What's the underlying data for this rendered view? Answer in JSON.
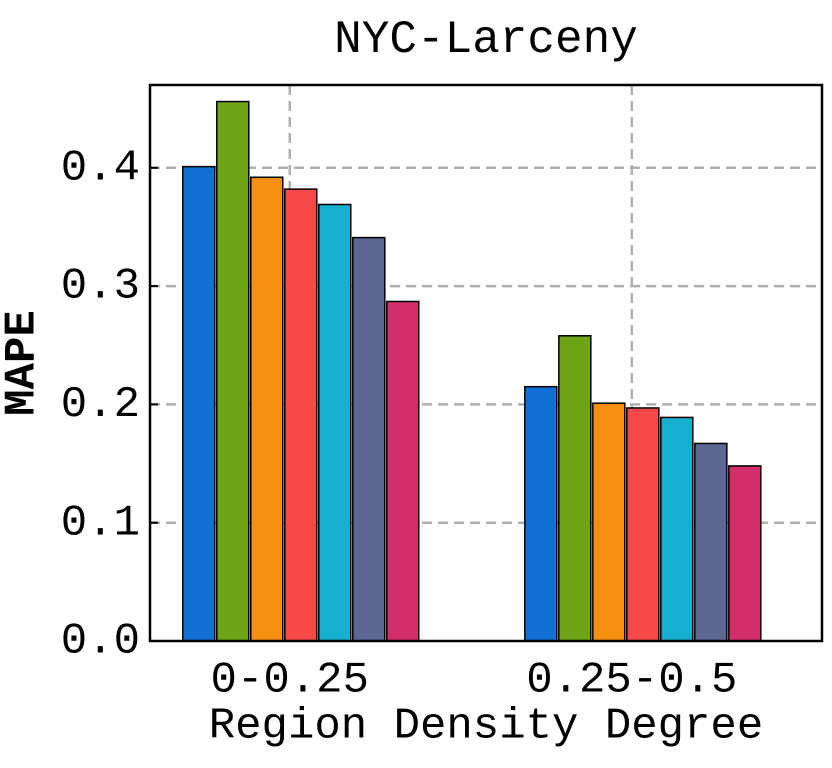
{
  "chart_data": {
    "type": "bar",
    "title": "NYC-Larceny",
    "xlabel": "Region Density Degree",
    "ylabel": "MAPE",
    "categories": [
      "0-0.25",
      "0.25-0.5"
    ],
    "series": [
      {
        "color": "#1170d2",
        "values": [
          0.401,
          0.215
        ]
      },
      {
        "color": "#6ea415",
        "values": [
          0.456,
          0.258
        ]
      },
      {
        "color": "#f68f10",
        "values": [
          0.392,
          0.201
        ]
      },
      {
        "color": "#f94848",
        "values": [
          0.382,
          0.197
        ]
      },
      {
        "color": "#17afd0",
        "values": [
          0.369,
          0.189
        ]
      },
      {
        "color": "#5e6694",
        "values": [
          0.341,
          0.167
        ]
      },
      {
        "color": "#d22e6b",
        "values": [
          0.287,
          0.148
        ]
      }
    ],
    "ylim": [
      0,
      0.47
    ],
    "yticks": [
      {
        "value": 0,
        "label": "0.0"
      },
      0.1,
      0.2,
      0.3,
      0.4
    ],
    "grid": true
  }
}
